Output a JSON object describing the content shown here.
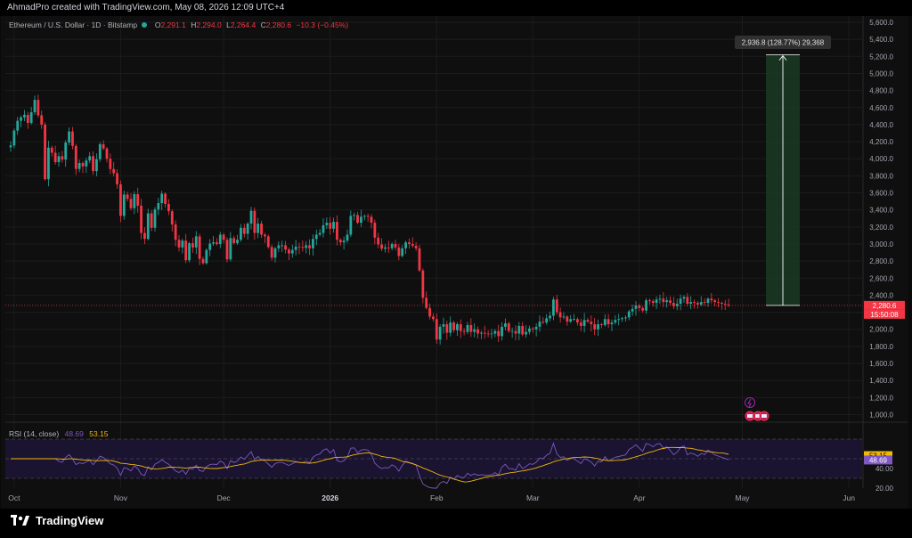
{
  "header": {
    "title": "AhmadPro created with TradingView.com, May 08, 2026 12:09 UTC+4"
  },
  "legend": {
    "symbol": "Ethereum / U.S. Dollar · 1D · Bitstamp",
    "o_label": "O",
    "o_value": "2,291.1",
    "h_label": "H",
    "h_value": "2,294.0",
    "l_label": "L",
    "l_value": "2,264.4",
    "c_label": "C",
    "c_value": "2,280.6",
    "change": "−10.3 (−0.45%)"
  },
  "rsi_legend": {
    "label": "RSI (14, close)",
    "rsi_value": "48.69",
    "ma_value": "53.15"
  },
  "measure": {
    "label": "2,936.8 (128.77%) 29,368"
  },
  "price_tag": {
    "price": "2,280.6",
    "countdown": "15:50:08"
  },
  "rsi_tags": {
    "ma": "53.15",
    "rsi": "48.69"
  },
  "brand": {
    "name": "TradingView"
  },
  "colors": {
    "up": "#26a69a",
    "down": "#f23645",
    "rsi": "#7e57c2",
    "rsi_ma": "#f0b90b",
    "measure_fill": "#1b3a24"
  },
  "icons": [
    "lightning-icon",
    "us-flag-icon"
  ],
  "chart_data": [
    {
      "type": "candlestick",
      "title": "Ethereum / U.S. Dollar · 1D · Bitstamp",
      "x_ticks": [
        "Oct",
        "Nov",
        "Dec",
        "2026",
        "Feb",
        "Mar",
        "Apr",
        "May",
        "Jun"
      ],
      "x_tick_dates": [
        "2025-10-01",
        "2025-11-01",
        "2025-12-01",
        "2026-01-01",
        "2026-02-01",
        "2026-03-01",
        "2026-04-01",
        "2026-05-01",
        "2026-06-01"
      ],
      "y_ticks": [
        "1,000.0",
        "1,200.0",
        "1,400.0",
        "1,600.0",
        "1,800.0",
        "2,000.0",
        "2,200.0",
        "2,400.0",
        "2,600.0",
        "2,800.0",
        "3,000.0",
        "3,200.0",
        "3,400.0",
        "3,600.0",
        "3,800.0",
        "4,000.0",
        "4,200.0",
        "4,400.0",
        "4,600.0",
        "4,800.0",
        "5,000.0",
        "5,200.0",
        "5,400.0",
        "5,600.0"
      ],
      "ylim": [
        900,
        5650
      ],
      "start_date": "2025-09-30",
      "close": [
        4155,
        4330,
        4445,
        4485,
        4515,
        4420,
        4545,
        4690,
        4510,
        4400,
        3760,
        4130,
        4070,
        3960,
        4030,
        3990,
        4190,
        4320,
        4150,
        3880,
        3950,
        3910,
        3980,
        4030,
        3855,
        3995,
        4170,
        4120,
        4000,
        3880,
        3830,
        3700,
        3330,
        3580,
        3530,
        3420,
        3585,
        3450,
        3130,
        3060,
        3360,
        3190,
        3405,
        3480,
        3590,
        3470,
        3385,
        3230,
        3050,
        2960,
        3040,
        2810,
        3010,
        2960,
        3090,
        2825,
        2775,
        2930,
        3005,
        3020,
        3000,
        3110,
        3050,
        2820,
        3070,
        3010,
        3050,
        3190,
        3120,
        3240,
        3390,
        3130,
        3240,
        3110,
        3090,
        2965,
        2840,
        2950,
        2985,
        2985,
        2935,
        2890,
        2930,
        2970,
        2965,
        2955,
        2985,
        2950,
        3060,
        3110,
        3130,
        3220,
        3250,
        3180,
        3260,
        3050,
        3020,
        3040,
        3110,
        3330,
        3340,
        3250,
        3320,
        3330,
        3320,
        3250,
        3075,
        2995,
        2945,
        2960,
        2950,
        3000,
        2960,
        2860,
        2950,
        3020,
        3000,
        2980,
        2950,
        2690,
        2370,
        2250,
        2150,
        2120,
        1880,
        2030,
        2060,
        1960,
        2080,
        1990,
        2060,
        1980,
        1970,
        2050,
        1970,
        2000,
        1950,
        1960,
        1950,
        1945,
        1950,
        1980,
        1920,
        2030,
        2070,
        1980,
        1980,
        1950,
        2040,
        1940,
        1970,
        2010,
        2000,
        2030,
        2090,
        2080,
        2130,
        2160,
        2350,
        2200,
        2140,
        2150,
        2090,
        2120,
        2120,
        2080,
        2040,
        2110,
        2090,
        2060,
        2000,
        2060,
        2050,
        2120,
        2060,
        2080,
        2110,
        2120,
        2130,
        2140,
        2210,
        2240,
        2280,
        2250,
        2220,
        2340,
        2330,
        2310,
        2350,
        2360,
        2320,
        2340,
        2310,
        2270,
        2300,
        2360,
        2380,
        2300,
        2320,
        2310,
        2290,
        2320,
        2310,
        2360,
        2340,
        2320,
        2310,
        2300,
        2291,
        2281
      ],
      "current_price": 2280.6,
      "measure": {
        "start_price": 2280.6,
        "end_price": 5217.4,
        "change": 2936.8,
        "change_pct": 128.77,
        "ticks": 29368
      },
      "current_price_line": 2280.6
    },
    {
      "type": "line",
      "title": "RSI (14, close)",
      "y_ticks": [
        "20.00",
        "40.00"
      ],
      "ylim": [
        20,
        80
      ],
      "bands": [
        30,
        50,
        70
      ],
      "last_rsi": 48.69,
      "last_ma": 53.15,
      "series": [
        {
          "name": "RSI",
          "color": "#7e57c2"
        },
        {
          "name": "RSI-based MA",
          "color": "#f0b90b"
        }
      ]
    }
  ]
}
